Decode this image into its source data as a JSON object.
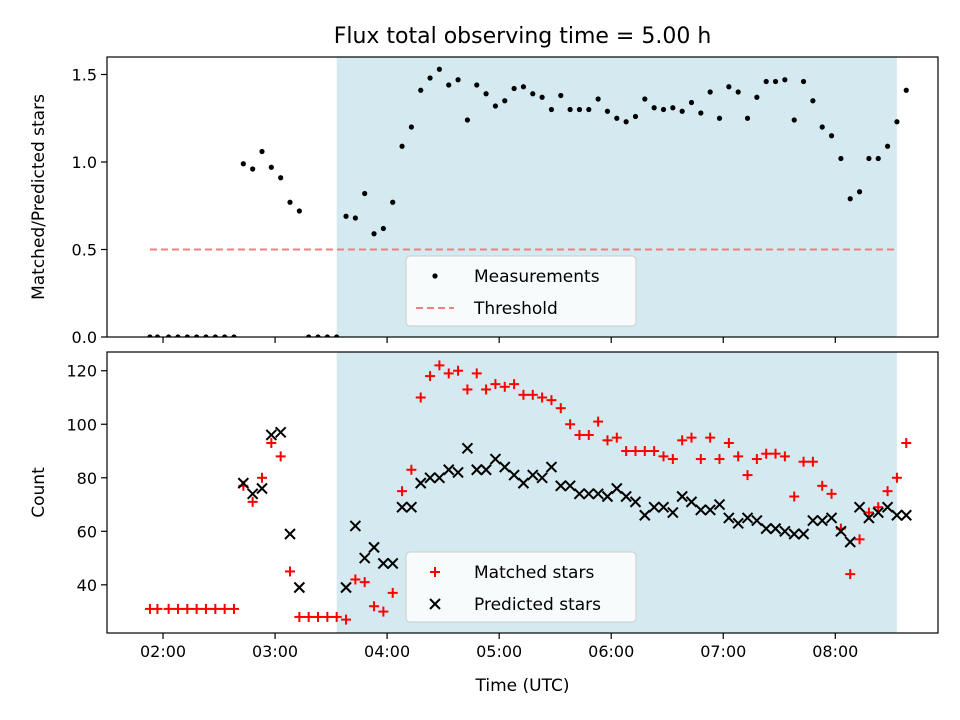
{
  "chart_data": [
    {
      "type": "scatter",
      "title": "Flux total observing time = 5.00 h",
      "xlabel": "",
      "ylabel": "Matched/Predicted stars",
      "x_ticks": [
        "02:00",
        "03:00",
        "04:00",
        "05:00",
        "06:00",
        "07:00",
        "08:00"
      ],
      "y_ticks": [
        "0.0",
        "0.5",
        "1.0",
        "1.5"
      ],
      "xlim": [
        "01:30",
        "08:55"
      ],
      "ylim": [
        0,
        1.6
      ],
      "grid": false,
      "legend_position": "bottom-center",
      "shaded_interval": [
        "03:33",
        "08:33"
      ],
      "shade_color": "#d4eaf0",
      "series": [
        {
          "name": "Measurements",
          "marker": "dot",
          "color": "#000000",
          "points": [
            [
              "01:53",
              0.0
            ],
            [
              "01:57",
              0.0
            ],
            [
              "02:03",
              0.0
            ],
            [
              "02:08",
              0.0
            ],
            [
              "02:13",
              0.0
            ],
            [
              "02:18",
              0.0
            ],
            [
              "02:23",
              0.0
            ],
            [
              "02:28",
              0.0
            ],
            [
              "02:33",
              0.0
            ],
            [
              "02:38",
              0.0
            ],
            [
              "02:43",
              0.99
            ],
            [
              "02:48",
              0.96
            ],
            [
              "02:53",
              1.06
            ],
            [
              "02:58",
              0.97
            ],
            [
              "03:03",
              0.91
            ],
            [
              "03:08",
              0.77
            ],
            [
              "03:13",
              0.72
            ],
            [
              "03:18",
              0.0
            ],
            [
              "03:23",
              0.0
            ],
            [
              "03:28",
              0.0
            ],
            [
              "03:33",
              0.0
            ],
            [
              "03:38",
              0.69
            ],
            [
              "03:43",
              0.68
            ],
            [
              "03:48",
              0.82
            ],
            [
              "03:53",
              0.59
            ],
            [
              "03:58",
              0.62
            ],
            [
              "04:03",
              0.77
            ],
            [
              "04:08",
              1.09
            ],
            [
              "04:13",
              1.2
            ],
            [
              "04:18",
              1.41
            ],
            [
              "04:23",
              1.48
            ],
            [
              "04:28",
              1.53
            ],
            [
              "04:33",
              1.44
            ],
            [
              "04:38",
              1.47
            ],
            [
              "04:43",
              1.24
            ],
            [
              "04:48",
              1.44
            ],
            [
              "04:53",
              1.39
            ],
            [
              "04:58",
              1.32
            ],
            [
              "05:03",
              1.35
            ],
            [
              "05:08",
              1.42
            ],
            [
              "05:13",
              1.43
            ],
            [
              "05:18",
              1.39
            ],
            [
              "05:23",
              1.37
            ],
            [
              "05:28",
              1.3
            ],
            [
              "05:33",
              1.38
            ],
            [
              "05:38",
              1.3
            ],
            [
              "05:43",
              1.3
            ],
            [
              "05:48",
              1.3
            ],
            [
              "05:53",
              1.36
            ],
            [
              "05:58",
              1.29
            ],
            [
              "06:03",
              1.25
            ],
            [
              "06:08",
              1.23
            ],
            [
              "06:13",
              1.26
            ],
            [
              "06:18",
              1.36
            ],
            [
              "06:23",
              1.31
            ],
            [
              "06:28",
              1.3
            ],
            [
              "06:33",
              1.31
            ],
            [
              "06:38",
              1.29
            ],
            [
              "06:43",
              1.34
            ],
            [
              "06:48",
              1.28
            ],
            [
              "06:53",
              1.4
            ],
            [
              "06:58",
              1.25
            ],
            [
              "07:03",
              1.43
            ],
            [
              "07:08",
              1.4
            ],
            [
              "07:13",
              1.25
            ],
            [
              "07:18",
              1.37
            ],
            [
              "07:23",
              1.46
            ],
            [
              "07:28",
              1.46
            ],
            [
              "07:33",
              1.47
            ],
            [
              "07:38",
              1.24
            ],
            [
              "07:43",
              1.46
            ],
            [
              "07:48",
              1.35
            ],
            [
              "07:53",
              1.2
            ],
            [
              "07:58",
              1.15
            ],
            [
              "08:03",
              1.02
            ],
            [
              "08:08",
              0.79
            ],
            [
              "08:13",
              0.83
            ],
            [
              "08:18",
              1.02
            ],
            [
              "08:23",
              1.02
            ],
            [
              "08:28",
              1.09
            ],
            [
              "08:33",
              1.23
            ],
            [
              "08:38",
              1.41
            ]
          ]
        },
        {
          "name": "Threshold",
          "marker": "dashed-line",
          "color": "#f08080",
          "points": [
            [
              "01:53",
              0.5
            ],
            [
              "08:33",
              0.5
            ]
          ]
        }
      ]
    },
    {
      "type": "scatter",
      "title": "",
      "xlabel": "Time (UTC)",
      "ylabel": "Count",
      "x_ticks": [
        "02:00",
        "03:00",
        "04:00",
        "05:00",
        "06:00",
        "07:00",
        "08:00"
      ],
      "y_ticks": [
        "40",
        "60",
        "80",
        "100",
        "120"
      ],
      "xlim": [
        "01:30",
        "08:55"
      ],
      "ylim": [
        22,
        127
      ],
      "grid": false,
      "legend_position": "bottom-center",
      "shaded_interval": [
        "03:33",
        "08:33"
      ],
      "shade_color": "#d4eaf0",
      "series": [
        {
          "name": "Matched stars",
          "marker": "plus",
          "color": "#ff0000",
          "points": [
            [
              "01:53",
              31
            ],
            [
              "01:57",
              31
            ],
            [
              "02:03",
              31
            ],
            [
              "02:08",
              31
            ],
            [
              "02:13",
              31
            ],
            [
              "02:18",
              31
            ],
            [
              "02:23",
              31
            ],
            [
              "02:28",
              31
            ],
            [
              "02:33",
              31
            ],
            [
              "02:38",
              31
            ],
            [
              "02:43",
              77
            ],
            [
              "02:48",
              71
            ],
            [
              "02:53",
              80
            ],
            [
              "02:58",
              93
            ],
            [
              "03:03",
              88
            ],
            [
              "03:08",
              45
            ],
            [
              "03:13",
              28
            ],
            [
              "03:18",
              28
            ],
            [
              "03:23",
              28
            ],
            [
              "03:28",
              28
            ],
            [
              "03:33",
              28
            ],
            [
              "03:38",
              27
            ],
            [
              "03:43",
              42
            ],
            [
              "03:48",
              41
            ],
            [
              "03:53",
              32
            ],
            [
              "03:58",
              30
            ],
            [
              "04:03",
              37
            ],
            [
              "04:08",
              75
            ],
            [
              "04:13",
              83
            ],
            [
              "04:18",
              110
            ],
            [
              "04:23",
              118
            ],
            [
              "04:28",
              122
            ],
            [
              "04:33",
              119
            ],
            [
              "04:38",
              120
            ],
            [
              "04:43",
              113
            ],
            [
              "04:48",
              119
            ],
            [
              "04:53",
              113
            ],
            [
              "04:58",
              115
            ],
            [
              "05:03",
              114
            ],
            [
              "05:08",
              115
            ],
            [
              "05:13",
              111
            ],
            [
              "05:18",
              111
            ],
            [
              "05:23",
              110
            ],
            [
              "05:28",
              109
            ],
            [
              "05:33",
              106
            ],
            [
              "05:38",
              100
            ],
            [
              "05:43",
              96
            ],
            [
              "05:48",
              96
            ],
            [
              "05:53",
              101
            ],
            [
              "05:58",
              94
            ],
            [
              "06:03",
              95
            ],
            [
              "06:08",
              90
            ],
            [
              "06:13",
              90
            ],
            [
              "06:18",
              90
            ],
            [
              "06:23",
              90
            ],
            [
              "06:28",
              88
            ],
            [
              "06:33",
              87
            ],
            [
              "06:38",
              94
            ],
            [
              "06:43",
              95
            ],
            [
              "06:48",
              87
            ],
            [
              "06:53",
              95
            ],
            [
              "06:58",
              87
            ],
            [
              "07:03",
              93
            ],
            [
              "07:08",
              88
            ],
            [
              "07:13",
              81
            ],
            [
              "07:18",
              87
            ],
            [
              "07:23",
              89
            ],
            [
              "07:28",
              89
            ],
            [
              "07:33",
              88
            ],
            [
              "07:38",
              73
            ],
            [
              "07:43",
              86
            ],
            [
              "07:48",
              86
            ],
            [
              "07:53",
              77
            ],
            [
              "07:58",
              74
            ],
            [
              "08:03",
              61
            ],
            [
              "08:08",
              44
            ],
            [
              "08:13",
              57
            ],
            [
              "08:18",
              67
            ],
            [
              "08:23",
              69
            ],
            [
              "08:28",
              75
            ],
            [
              "08:33",
              80
            ],
            [
              "08:38",
              93
            ]
          ]
        },
        {
          "name": "Predicted stars",
          "marker": "x",
          "color": "#000000",
          "points": [
            [
              "02:43",
              78
            ],
            [
              "02:48",
              74
            ],
            [
              "02:53",
              76
            ],
            [
              "02:58",
              96
            ],
            [
              "03:03",
              97
            ],
            [
              "03:08",
              59
            ],
            [
              "03:13",
              39
            ],
            [
              "03:38",
              39
            ],
            [
              "03:43",
              62
            ],
            [
              "03:48",
              50
            ],
            [
              "03:53",
              54
            ],
            [
              "03:58",
              48
            ],
            [
              "04:03",
              48
            ],
            [
              "04:08",
              69
            ],
            [
              "04:13",
              69
            ],
            [
              "04:18",
              78
            ],
            [
              "04:23",
              80
            ],
            [
              "04:28",
              80
            ],
            [
              "04:33",
              83
            ],
            [
              "04:38",
              82
            ],
            [
              "04:43",
              91
            ],
            [
              "04:48",
              83
            ],
            [
              "04:53",
              83
            ],
            [
              "04:58",
              87
            ],
            [
              "05:03",
              84
            ],
            [
              "05:08",
              81
            ],
            [
              "05:13",
              78
            ],
            [
              "05:18",
              81
            ],
            [
              "05:23",
              80
            ],
            [
              "05:28",
              84
            ],
            [
              "05:33",
              77
            ],
            [
              "05:38",
              77
            ],
            [
              "05:43",
              74
            ],
            [
              "05:48",
              74
            ],
            [
              "05:53",
              74
            ],
            [
              "05:58",
              73
            ],
            [
              "06:03",
              76
            ],
            [
              "06:08",
              73
            ],
            [
              "06:13",
              71
            ],
            [
              "06:18",
              66
            ],
            [
              "06:23",
              69
            ],
            [
              "06:28",
              69
            ],
            [
              "06:33",
              67
            ],
            [
              "06:38",
              73
            ],
            [
              "06:43",
              71
            ],
            [
              "06:48",
              68
            ],
            [
              "06:53",
              68
            ],
            [
              "06:58",
              70
            ],
            [
              "07:03",
              65
            ],
            [
              "07:08",
              63
            ],
            [
              "07:13",
              65
            ],
            [
              "07:18",
              64
            ],
            [
              "07:23",
              61
            ],
            [
              "07:28",
              61
            ],
            [
              "07:33",
              60
            ],
            [
              "07:38",
              59
            ],
            [
              "07:43",
              59
            ],
            [
              "07:48",
              64
            ],
            [
              "07:53",
              64
            ],
            [
              "07:58",
              65
            ],
            [
              "08:03",
              60
            ],
            [
              "08:08",
              56
            ],
            [
              "08:13",
              69
            ],
            [
              "08:18",
              65
            ],
            [
              "08:23",
              67
            ],
            [
              "08:28",
              69
            ],
            [
              "08:33",
              66
            ],
            [
              "08:38",
              66
            ]
          ]
        }
      ]
    }
  ]
}
